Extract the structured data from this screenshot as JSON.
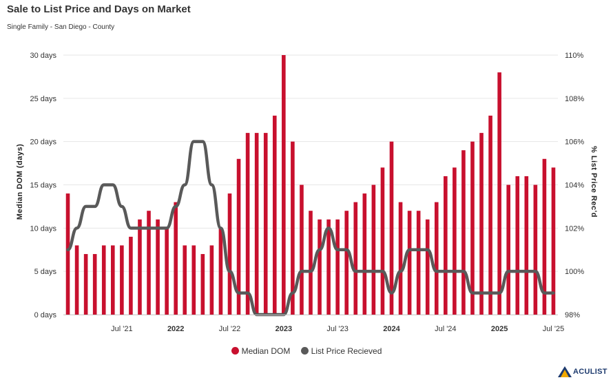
{
  "title": "Sale to List Price and Days on Market",
  "subtitle": "Single Family - San Diego - County",
  "colors": {
    "bar": "#c8102e",
    "line": "#595959",
    "grid": "#e6e6e6"
  },
  "legend": [
    {
      "label": "Median DOM",
      "color": "#c8102e"
    },
    {
      "label": "List Price Recieved",
      "color": "#595959"
    }
  ],
  "logo_text": "ACULIST",
  "chart_data": {
    "type": "bar",
    "combo_types": {
      "Median DOM": "bar",
      "List Price Recieved": "line"
    },
    "categories": [
      "Jan 2021",
      "Feb 2021",
      "Mar 2021",
      "Apr 2021",
      "May 2021",
      "Jun 2021",
      "Jul 2021",
      "Aug 2021",
      "Sep 2021",
      "Oct 2021",
      "Nov 2021",
      "Dec 2021",
      "Jan 2022",
      "Feb 2022",
      "Mar 2022",
      "Apr 2022",
      "May 2022",
      "Jun 2022",
      "Jul 2022",
      "Aug 2022",
      "Sep 2022",
      "Oct 2022",
      "Nov 2022",
      "Dec 2022",
      "Jan 2023",
      "Feb 2023",
      "Mar 2023",
      "Apr 2023",
      "May 2023",
      "Jun 2023",
      "Jul 2023",
      "Aug 2023",
      "Sep 2023",
      "Oct 2023",
      "Nov 2023",
      "Dec 2023",
      "Jan 2024",
      "Feb 2024",
      "Mar 2024",
      "Apr 2024",
      "May 2024",
      "Jun 2024",
      "Jul 2024",
      "Aug 2024",
      "Sep 2024",
      "Oct 2024",
      "Nov 2024",
      "Dec 2024",
      "Jan 2025",
      "Feb 2025",
      "Mar 2025",
      "Apr 2025",
      "May 2025",
      "Jun 2025",
      "Jul 2025"
    ],
    "x_tick_labels": [
      {
        "index": 6,
        "label": "Jul '21",
        "bold": false
      },
      {
        "index": 12,
        "label": "2022",
        "bold": true
      },
      {
        "index": 18,
        "label": "Jul '22",
        "bold": false
      },
      {
        "index": 24,
        "label": "2023",
        "bold": true
      },
      {
        "index": 30,
        "label": "Jul '23",
        "bold": false
      },
      {
        "index": 36,
        "label": "2024",
        "bold": true
      },
      {
        "index": 42,
        "label": "Jul '24",
        "bold": false
      },
      {
        "index": 48,
        "label": "2025",
        "bold": true
      },
      {
        "index": 54,
        "label": "Jul '25",
        "bold": false
      }
    ],
    "series": [
      {
        "name": "Median DOM",
        "axis": "left",
        "values": [
          14,
          8,
          7,
          7,
          8,
          8,
          8,
          9,
          11,
          12,
          11,
          10,
          13,
          8,
          8,
          7,
          8,
          10,
          14,
          18,
          21,
          21,
          21,
          23,
          30,
          20,
          15,
          12,
          11,
          11,
          11,
          12,
          13,
          14,
          15,
          17,
          20,
          13,
          12,
          12,
          11,
          13,
          16,
          17,
          19,
          20,
          21,
          23,
          28,
          15,
          16,
          16,
          15,
          18,
          17
        ]
      },
      {
        "name": "List Price Recieved",
        "axis": "right",
        "values": [
          101.0,
          102.0,
          103.0,
          103.0,
          104.0,
          104.0,
          103.0,
          102.0,
          102.0,
          102.0,
          102.0,
          102.0,
          103.0,
          104.0,
          106.0,
          106.0,
          104.0,
          102.0,
          100.0,
          99.0,
          99.0,
          98.0,
          98.0,
          98.0,
          98.0,
          99.0,
          100.0,
          100.0,
          101.0,
          102.0,
          101.0,
          101.0,
          100.0,
          100.0,
          100.0,
          100.0,
          99.0,
          100.0,
          101.0,
          101.0,
          101.0,
          100.0,
          100.0,
          100.0,
          100.0,
          99.0,
          99.0,
          99.0,
          99.0,
          100.0,
          100.0,
          100.0,
          100.0,
          99.0,
          99.0
        ]
      }
    ],
    "yaxis_left": {
      "label": "Median DOM (days)",
      "ylim": [
        0,
        30
      ],
      "ticks": [
        "0 days",
        "5 days",
        "10 days",
        "15 days",
        "20 days",
        "25 days",
        "30 days"
      ]
    },
    "yaxis_right": {
      "label": "% List Price Rec'd",
      "ylim": [
        98,
        110
      ],
      "ticks": [
        "98%",
        "100%",
        "102%",
        "104%",
        "106%",
        "108%",
        "110%"
      ]
    },
    "grid": true,
    "legend_position": "bottom-center"
  }
}
